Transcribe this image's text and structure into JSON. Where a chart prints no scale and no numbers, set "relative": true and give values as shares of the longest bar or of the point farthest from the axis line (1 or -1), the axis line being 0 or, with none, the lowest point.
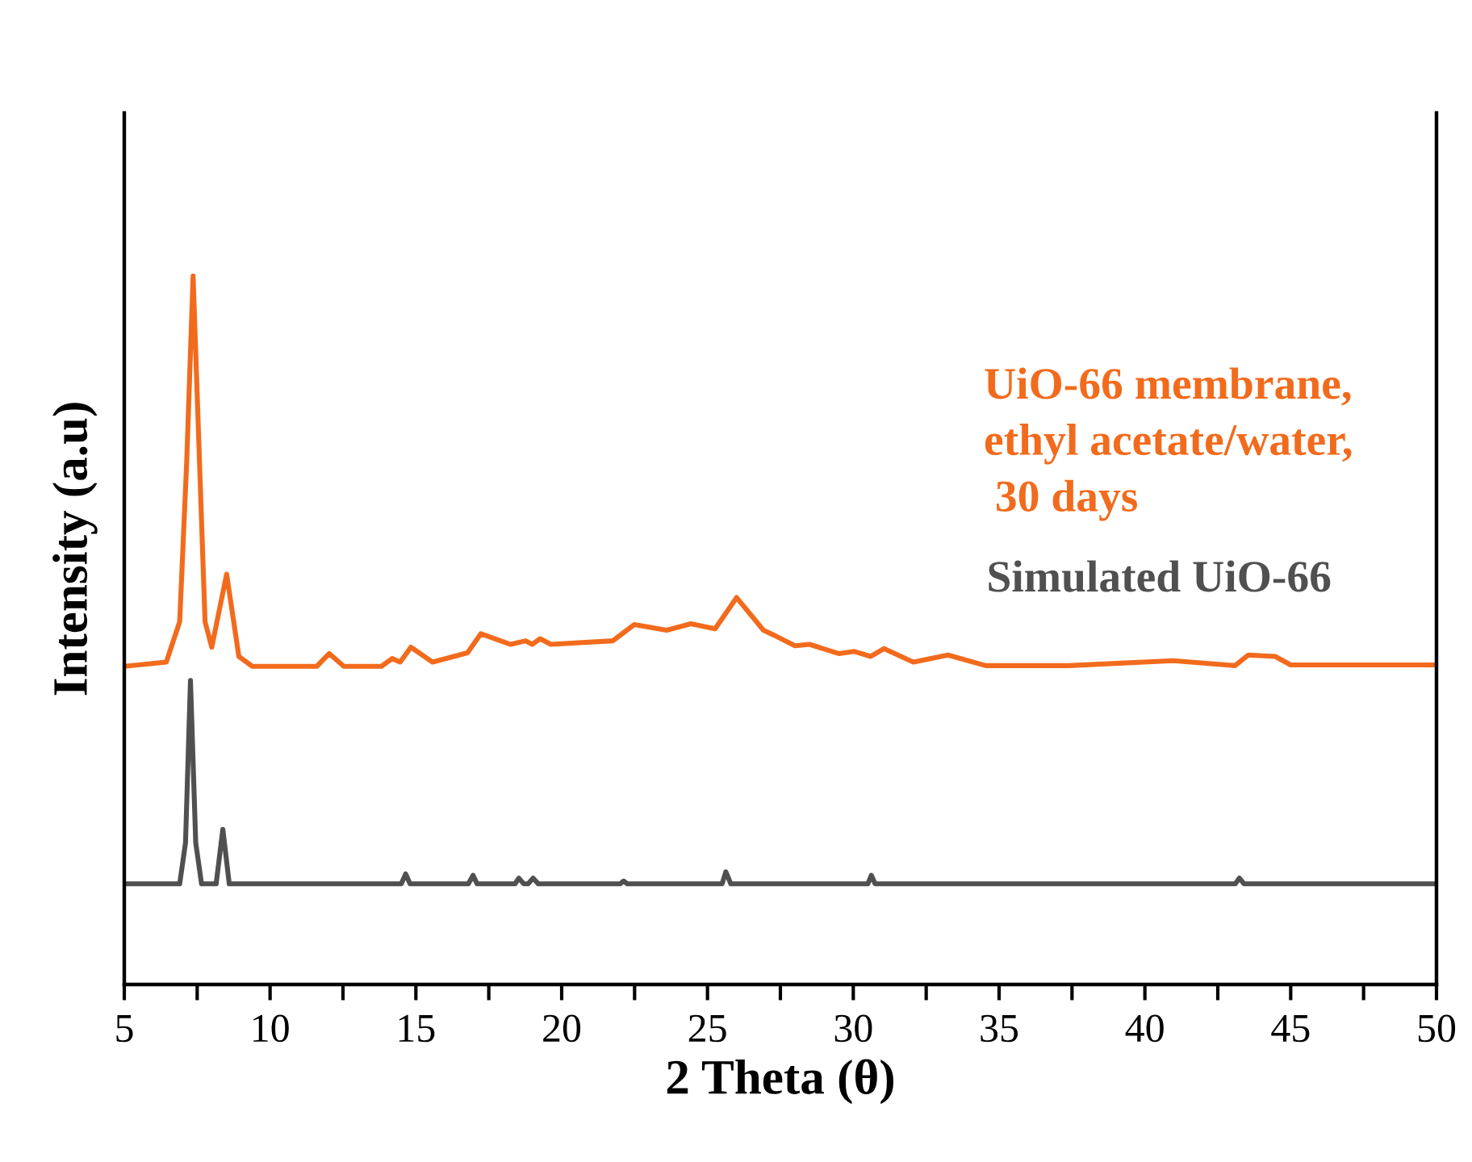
{
  "chart_data": {
    "type": "line",
    "relative": true,
    "xlabel": "2 Theta (θ)",
    "ylabel": "Intensity (a.u)",
    "xlim": [
      5,
      50
    ],
    "xticks": [
      5,
      {
        "value": 7.5,
        "label": null
      },
      10,
      {
        "value": 12.5,
        "label": null
      },
      15,
      {
        "value": 17.5,
        "label": null
      },
      20,
      {
        "value": 22.5,
        "label": null
      },
      25,
      {
        "value": 27.5,
        "label": null
      },
      30,
      {
        "value": 32.5,
        "label": null
      },
      35,
      {
        "value": 37.5,
        "label": null
      },
      40,
      {
        "value": 42.5,
        "label": null
      },
      45,
      {
        "value": 47.5,
        "label": null
      },
      50
    ],
    "grid": false,
    "legend": false,
    "marker": "none",
    "line_style": "solid",
    "series": [
      {
        "name": "UiO-66 membrane,\nethyl acetate/water,\n 30 days",
        "color": "#f26b1d",
        "x": [
          5.0,
          6.44,
          6.9,
          7.14,
          7.36,
          7.58,
          7.77,
          8.0,
          8.51,
          8.93,
          9.39,
          11.6,
          12.03,
          12.53,
          13.82,
          14.19,
          14.46,
          14.83,
          15.57,
          16.77,
          17.23,
          18.25,
          18.76,
          18.99,
          19.26,
          19.63,
          21.75,
          22.49,
          23.6,
          24.43,
          25.26,
          26.0,
          26.92,
          27.28,
          28.0,
          28.5,
          29.5,
          30.04,
          30.6,
          31.05,
          32.06,
          33.25,
          34.54,
          37.39,
          40.97,
          43.09,
          43.55,
          44.47,
          45.0,
          50.0
        ],
        "values": [
          0.449,
          0.455,
          0.512,
          0.737,
          1.0,
          0.737,
          0.512,
          0.476,
          0.579,
          0.463,
          0.449,
          0.449,
          0.467,
          0.449,
          0.449,
          0.46,
          0.455,
          0.476,
          0.455,
          0.468,
          0.495,
          0.48,
          0.485,
          0.48,
          0.488,
          0.48,
          0.485,
          0.508,
          0.5,
          0.509,
          0.502,
          0.546,
          0.5,
          0.493,
          0.478,
          0.48,
          0.467,
          0.47,
          0.463,
          0.474,
          0.455,
          0.465,
          0.45,
          0.45,
          0.457,
          0.45,
          0.465,
          0.463,
          0.451,
          0.451
        ]
      },
      {
        "name": "Simulated UiO-66",
        "color": "#505050",
        "x": [
          5.0,
          6.9,
          7.1,
          7.27,
          7.45,
          7.65,
          8.15,
          8.38,
          8.6,
          14.5,
          14.65,
          14.8,
          16.8,
          16.96,
          17.1,
          18.4,
          18.53,
          18.7,
          18.85,
          19.02,
          19.2,
          22.0,
          22.12,
          22.25,
          25.5,
          25.63,
          25.8,
          30.5,
          30.62,
          30.75,
          43.1,
          43.24,
          43.4,
          50.0
        ],
        "values": [
          0.142,
          0.142,
          0.2,
          0.429,
          0.2,
          0.142,
          0.142,
          0.219,
          0.142,
          0.142,
          0.156,
          0.142,
          0.142,
          0.154,
          0.142,
          0.142,
          0.15,
          0.142,
          0.142,
          0.15,
          0.142,
          0.142,
          0.146,
          0.142,
          0.142,
          0.159,
          0.142,
          0.142,
          0.154,
          0.142,
          0.142,
          0.15,
          0.142,
          0.142
        ]
      }
    ]
  }
}
